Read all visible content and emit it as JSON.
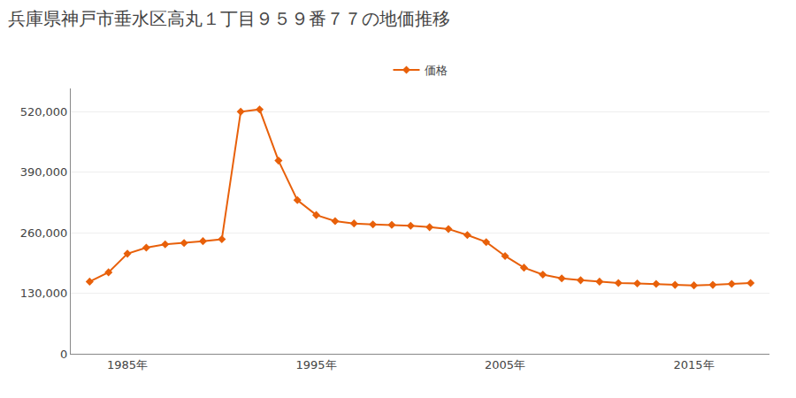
{
  "chart_data": {
    "type": "line",
    "title": "兵庫県神戸市垂水区高丸１丁目９５９番７７の地価推移",
    "x": [
      1983,
      1984,
      1985,
      1986,
      1987,
      1988,
      1989,
      1990,
      1991,
      1992,
      1993,
      1994,
      1995,
      1996,
      1997,
      1998,
      1999,
      2000,
      2001,
      2002,
      2003,
      2004,
      2005,
      2006,
      2007,
      2008,
      2009,
      2010,
      2011,
      2012,
      2013,
      2014,
      2015,
      2016,
      2017,
      2018
    ],
    "series": [
      {
        "name": "価格",
        "color": "#E8600A",
        "marker": "diamond",
        "values": [
          155000,
          175000,
          215000,
          228000,
          235000,
          238000,
          242000,
          246000,
          520000,
          525000,
          415000,
          330000,
          298000,
          285000,
          280000,
          278000,
          277000,
          275000,
          272000,
          268000,
          255000,
          240000,
          210000,
          185000,
          170000,
          162000,
          158000,
          155000,
          152000,
          151000,
          150000,
          148000,
          147000,
          148000,
          150000,
          152000
        ]
      }
    ],
    "xlim": [
      1982,
      2019
    ],
    "xticks": [
      {
        "value": 1985,
        "label": "1985年"
      },
      {
        "value": 1995,
        "label": "1995年"
      },
      {
        "value": 2005,
        "label": "2005年"
      },
      {
        "value": 2015,
        "label": "2015年"
      }
    ],
    "ylim": [
      0,
      570000
    ],
    "yticks": [
      0,
      {
        "value": 130000,
        "label": "130,000"
      },
      {
        "value": 260000,
        "label": "260,000"
      },
      {
        "value": 390000,
        "label": "390,000"
      },
      {
        "value": 520000,
        "label": "520,000"
      }
    ],
    "grid": true,
    "legend": "top"
  }
}
